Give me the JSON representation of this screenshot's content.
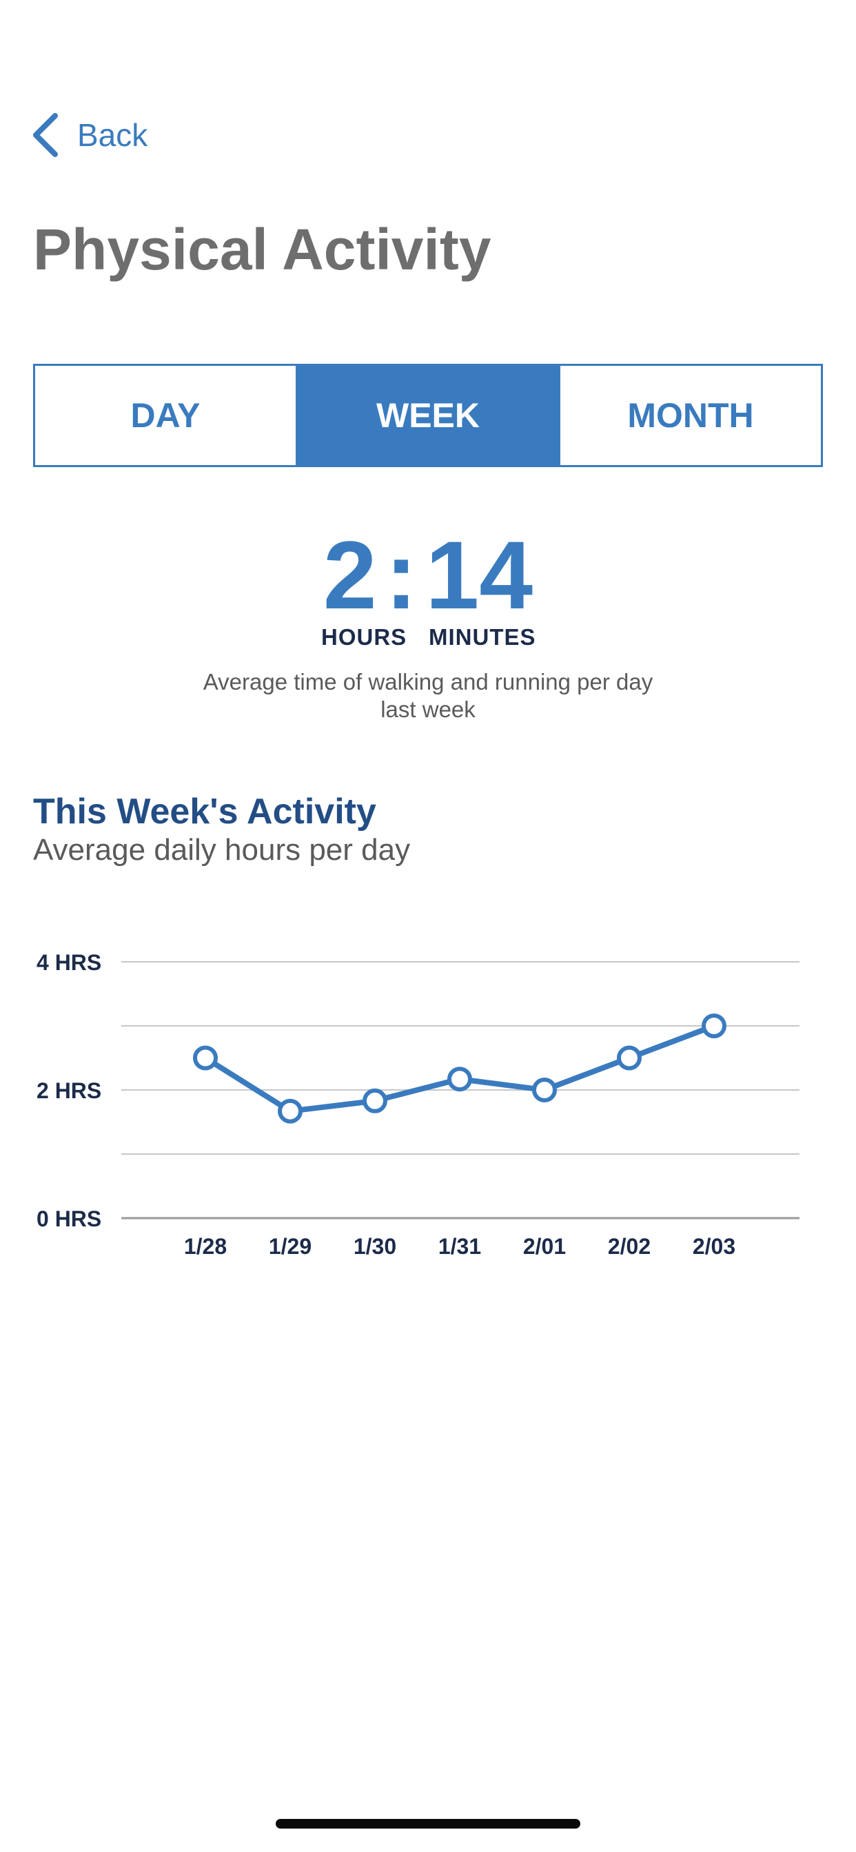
{
  "nav": {
    "back_label": "Back"
  },
  "page": {
    "title": "Physical Activity"
  },
  "tabs": [
    {
      "label": "DAY",
      "active": false
    },
    {
      "label": "WEEK",
      "active": true
    },
    {
      "label": "MONTH",
      "active": false
    }
  ],
  "summary": {
    "hours": "2",
    "separator": ":",
    "minutes": "14",
    "hours_label": "HOURS",
    "minutes_label": "MINUTES",
    "description_line1": "Average time of walking and running per day",
    "description_line2": "last week"
  },
  "section": {
    "title": "This Week's Activity",
    "subtitle": "Average daily hours per day"
  },
  "colors": {
    "accent": "#3a7bbf",
    "title_gray": "#6e6e6e",
    "section_title": "#234d85",
    "axis_text": "#1c2b4a",
    "grid": "#c8c8c8"
  },
  "chart_data": {
    "type": "line",
    "categories": [
      "1/28",
      "1/29",
      "1/30",
      "1/31",
      "2/01",
      "2/02",
      "2/03"
    ],
    "series": [
      {
        "values": [
          2.5,
          1.67,
          1.83,
          2.17,
          2.0,
          2.5,
          3.0
        ]
      }
    ],
    "ylim": [
      0,
      4
    ],
    "yticks": [
      {
        "value": 0,
        "label": "0 HRS"
      },
      {
        "value": 1,
        "label": ""
      },
      {
        "value": 2,
        "label": "2 HRS"
      },
      {
        "value": 3,
        "label": ""
      },
      {
        "value": 4,
        "label": "4 HRS"
      }
    ],
    "grid": true,
    "marker": "hollow-circle"
  }
}
